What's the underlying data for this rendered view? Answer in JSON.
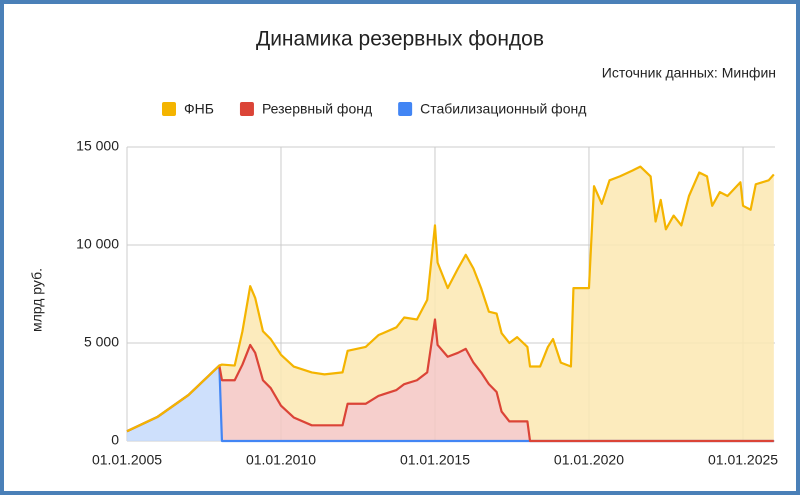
{
  "chart_data": {
    "type": "stacked-area",
    "title": "Динамика резервных фондов",
    "subtitle": "Источник данных: Минфин",
    "y_label": "млрд руб.",
    "x": [
      "2005-01-01",
      "2006-01-01",
      "2007-01-01",
      "2008-01-01",
      "2008-02-01",
      "2008-07-01",
      "2008-10-01",
      "2009-01-01",
      "2009-03-01",
      "2009-06-01",
      "2009-09-01",
      "2010-01-01",
      "2010-06-01",
      "2011-01-01",
      "2011-06-01",
      "2012-01-01",
      "2012-03-01",
      "2012-10-01",
      "2013-03-01",
      "2013-10-01",
      "2014-01-01",
      "2014-06-01",
      "2014-10-01",
      "2015-01-01",
      "2015-02-01",
      "2015-06-01",
      "2015-10-01",
      "2016-01-01",
      "2016-04-01",
      "2016-07-01",
      "2016-10-01",
      "2017-01-01",
      "2017-03-01",
      "2017-06-01",
      "2017-09-01",
      "2018-01-01",
      "2018-02-01",
      "2018-06-01",
      "2018-09-01",
      "2018-11-01",
      "2019-02-01",
      "2019-06-01",
      "2019-07-01",
      "2020-01-01",
      "2020-03-01",
      "2020-06-01",
      "2020-09-01",
      "2021-01-01",
      "2021-06-01",
      "2021-09-01",
      "2022-01-01",
      "2022-03-01",
      "2022-05-01",
      "2022-07-01",
      "2022-10-01",
      "2023-01-01",
      "2023-04-01",
      "2023-08-01",
      "2023-11-01",
      "2024-01-01",
      "2024-04-01",
      "2024-07-01",
      "2024-12-01",
      "2025-01-01",
      "2025-04-01",
      "2025-06-01",
      "2025-11-01",
      "2026-01-01"
    ],
    "series": [
      {
        "name": "ФНБ",
        "color": "#f4b400",
        "fill": "#fce8b2",
        "values": [
          0,
          0,
          0,
          0,
          800,
          750,
          1700,
          3000,
          2800,
          2500,
          2500,
          2600,
          2600,
          2700,
          2600,
          2700,
          2700,
          2900,
          3100,
          3200,
          3400,
          3100,
          3700,
          4800,
          4200,
          3500,
          4300,
          4800,
          4800,
          4300,
          3700,
          4000,
          4000,
          4000,
          4300,
          3800,
          3800,
          3800,
          4800,
          5200,
          4000,
          3800,
          7800,
          7800,
          13000,
          12100,
          13300,
          13500,
          13800,
          14000,
          13500,
          11200,
          12300,
          10800,
          11500,
          11000,
          12500,
          13700,
          13500,
          12000,
          12700,
          12500,
          13200,
          12000,
          11800,
          13100,
          13300,
          13600
        ]
      },
      {
        "name": "Резервный фонд",
        "color": "#db4437",
        "fill": "#f4c7c3",
        "values": [
          0,
          0,
          0,
          0,
          3100,
          3100,
          3900,
          4900,
          4500,
          3100,
          2700,
          1800,
          1200,
          800,
          800,
          800,
          1900,
          1900,
          2300,
          2600,
          2900,
          3100,
          3500,
          6200,
          4900,
          4300,
          4500,
          4700,
          4000,
          3500,
          2900,
          2500,
          1500,
          1000,
          1000,
          1000,
          0,
          0,
          0,
          0,
          0,
          0,
          0,
          0,
          0,
          0,
          0,
          0,
          0,
          0,
          0,
          0,
          0,
          0,
          0,
          0,
          0,
          0,
          0,
          0,
          0,
          0,
          0,
          0,
          0,
          0,
          0,
          0
        ]
      },
      {
        "name": "Стабилизационный фонд",
        "color": "#4285f4",
        "fill": "#c6dafc",
        "values": [
          500,
          1240,
          2350,
          3850,
          0,
          0,
          0,
          0,
          0,
          0,
          0,
          0,
          0,
          0,
          0,
          0,
          0,
          0,
          0,
          0,
          0,
          0,
          0,
          0,
          0,
          0,
          0,
          0,
          0,
          0,
          0,
          0,
          0,
          0,
          0,
          0,
          0,
          0,
          0,
          0,
          0,
          0,
          0,
          0,
          0,
          0,
          0,
          0,
          0,
          0,
          0,
          0,
          0,
          0,
          0,
          0,
          0,
          0,
          0,
          0,
          0,
          0,
          0,
          0,
          0,
          0,
          0,
          0
        ]
      }
    ],
    "stacked": true,
    "xlim": [
      "2005-01-01",
      "2026-01-15"
    ],
    "xticks": [
      {
        "value": "2005-01-01",
        "label": "01.01.2005"
      },
      {
        "value": "2010-01-01",
        "label": "01.01.2010"
      },
      {
        "value": "2015-01-01",
        "label": "01.01.2015"
      },
      {
        "value": "2020-01-01",
        "label": "01.01.2020"
      },
      {
        "value": "2025-01-01",
        "label": "01.01.2025"
      }
    ],
    "ylim": [
      0,
      15000
    ],
    "yticks": [
      0,
      {
        "value": 5000,
        "label": "5 000"
      },
      {
        "value": 10000,
        "label": "10 000"
      },
      {
        "value": 15000,
        "label": "15 000"
      }
    ],
    "grid": true,
    "legend": "top"
  }
}
